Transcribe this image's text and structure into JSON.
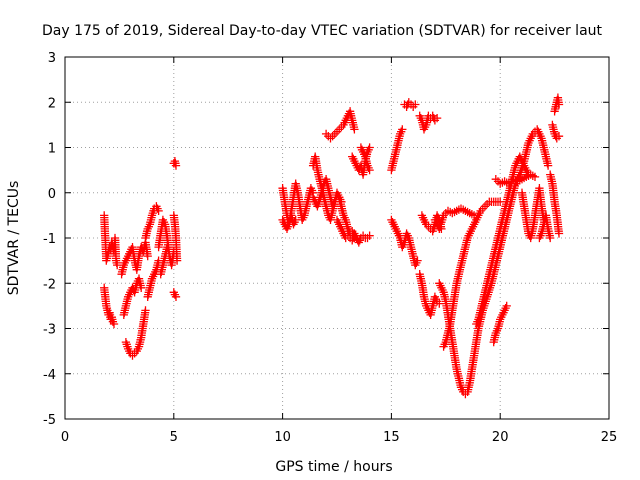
{
  "chart_data": {
    "type": "scatter",
    "title": "Day 175 of 2019, Sidereal Day-to-day VTEC variation (SDTVAR) for receiver laut",
    "xlabel": "GPS time / hours",
    "ylabel": "SDTVAR / TECUs",
    "xlim": [
      0,
      25
    ],
    "ylim": [
      -5,
      3
    ],
    "x_ticks": [
      0,
      5,
      10,
      15,
      20,
      25
    ],
    "y_ticks": [
      -5,
      -4,
      -3,
      -2,
      -1,
      0,
      1,
      2,
      3
    ],
    "x_tick_labels": [
      "0",
      "5",
      "10",
      "15",
      "20",
      "25"
    ],
    "y_tick_labels": [
      "-5",
      "-4",
      "-3",
      "-2",
      "-1",
      "0",
      "1",
      "2",
      "3"
    ],
    "grid": true,
    "marker": "+",
    "color": "#ff0000",
    "series": [
      {
        "x": [
          1.8,
          1.85,
          1.9,
          1.95,
          2.0,
          2.05,
          2.1,
          2.15,
          2.2,
          2.25,
          2.3,
          2.35,
          2.4
        ],
        "y": [
          -0.5,
          -1.0,
          -1.5,
          -1.4,
          -1.3,
          -1.2,
          -1.25,
          -1.1,
          -1.2,
          -1.3,
          -1.0,
          -1.5,
          -1.6
        ]
      },
      {
        "x": [
          1.8,
          1.85,
          1.9,
          1.95,
          2.0,
          2.05,
          2.1,
          2.15,
          2.2,
          2.25
        ],
        "y": [
          -2.1,
          -2.3,
          -2.5,
          -2.6,
          -2.7,
          -2.65,
          -2.8,
          -2.75,
          -2.85,
          -2.9
        ]
      },
      {
        "x": [
          2.6,
          2.7,
          2.8,
          2.9,
          3.0,
          3.1,
          3.2,
          3.3,
          3.4,
          3.5,
          3.6,
          3.7,
          3.8
        ],
        "y": [
          -1.8,
          -1.6,
          -1.5,
          -1.4,
          -1.3,
          -1.2,
          -1.5,
          -1.7,
          -1.4,
          -1.2,
          -1.3,
          -1.1,
          -1.4
        ]
      },
      {
        "x": [
          2.7,
          2.8,
          2.9,
          3.0,
          3.1,
          3.2,
          3.3,
          3.4,
          3.5
        ],
        "y": [
          -2.7,
          -2.5,
          -2.3,
          -2.2,
          -2.1,
          -2.2,
          -2.0,
          -1.9,
          -2.1
        ]
      },
      {
        "x": [
          2.8,
          2.9,
          3.0,
          3.1,
          3.2,
          3.3,
          3.4,
          3.5,
          3.6,
          3.7
        ],
        "y": [
          -3.3,
          -3.45,
          -3.55,
          -3.6,
          -3.55,
          -3.5,
          -3.4,
          -3.2,
          -2.9,
          -2.6
        ]
      },
      {
        "x": [
          3.7,
          3.8,
          3.9,
          4.0,
          4.1,
          4.2,
          4.3
        ],
        "y": [
          -1.0,
          -0.8,
          -0.7,
          -0.5,
          -0.35,
          -0.3,
          -0.4
        ]
      },
      {
        "x": [
          3.8,
          3.9,
          4.0,
          4.1,
          4.2,
          4.3
        ],
        "y": [
          -2.3,
          -2.1,
          -1.9,
          -1.8,
          -1.7,
          -1.5
        ]
      },
      {
        "x": [
          4.3,
          4.4,
          4.5,
          4.6,
          4.7,
          4.8,
          4.9,
          5.0
        ],
        "y": [
          -1.2,
          -0.9,
          -0.6,
          -0.7,
          -1.0,
          -1.4,
          -1.6,
          -1.3
        ]
      },
      {
        "x": [
          4.4,
          4.5,
          4.6,
          4.7
        ],
        "y": [
          -1.8,
          -1.6,
          -1.4,
          -1.2
        ]
      },
      {
        "x": [
          5.0,
          5.05,
          5.1,
          5.15
        ],
        "y": [
          -0.5,
          -0.7,
          -1.0,
          -1.5
        ]
      },
      {
        "x": [
          5.0,
          5.05,
          5.1
        ],
        "y": [
          -2.2,
          -2.25,
          -2.3
        ]
      },
      {
        "x": [
          5.0,
          5.05,
          5.1
        ],
        "y": [
          0.65,
          0.7,
          0.6
        ]
      },
      {
        "x": [
          10.0,
          10.1,
          10.2,
          10.3,
          10.4,
          10.5,
          10.6,
          10.7,
          10.8,
          10.9,
          11.0,
          11.1,
          11.2,
          11.3,
          11.4
        ],
        "y": [
          0.1,
          -0.2,
          -0.5,
          -0.7,
          -0.4,
          -0.1,
          0.2,
          0.0,
          -0.3,
          -0.6,
          -0.5,
          -0.3,
          -0.1,
          0.1,
          0.0
        ]
      },
      {
        "x": [
          10.0,
          10.1,
          10.2,
          10.3,
          10.4,
          10.5,
          10.6
        ],
        "y": [
          -0.6,
          -0.7,
          -0.8,
          -0.65,
          -0.5,
          -0.7,
          -0.6
        ]
      },
      {
        "x": [
          11.4,
          11.5,
          11.6,
          11.7,
          11.8,
          11.9,
          12.0,
          12.1,
          12.2,
          12.3,
          12.4
        ],
        "y": [
          0.6,
          0.8,
          0.5,
          0.3,
          0.1,
          -0.1,
          -0.3,
          -0.5,
          -0.6,
          -0.4,
          -0.2
        ]
      },
      {
        "x": [
          11.4,
          11.5,
          11.6,
          11.7,
          11.8,
          11.9,
          12.0,
          12.1,
          12.2,
          12.3,
          12.4,
          12.5,
          12.6,
          12.7
        ],
        "y": [
          -0.1,
          -0.2,
          -0.3,
          -0.15,
          0.0,
          0.2,
          0.3,
          0.1,
          -0.1,
          -0.3,
          -0.2,
          0.0,
          -0.1,
          -0.2
        ]
      },
      {
        "x": [
          12.0,
          12.2,
          12.4,
          12.6,
          12.8,
          13.0,
          13.1,
          13.2,
          13.3
        ],
        "y": [
          1.3,
          1.2,
          1.3,
          1.4,
          1.5,
          1.7,
          1.8,
          1.6,
          1.4
        ]
      },
      {
        "x": [
          12.5,
          12.6,
          12.7,
          12.8,
          12.9,
          13.0,
          13.1,
          13.2,
          13.3,
          13.4,
          13.5,
          13.6,
          13.7,
          13.8,
          13.9,
          14.0
        ],
        "y": [
          -0.6,
          -0.7,
          -0.8,
          -0.9,
          -1.0,
          -0.95,
          -1.0,
          -1.05,
          -0.9,
          -1.0,
          -1.1,
          -1.0,
          -0.95,
          -1.0,
          -1.0,
          -0.95
        ]
      },
      {
        "x": [
          12.6,
          12.7,
          12.8,
          12.9,
          13.0,
          13.1,
          13.2,
          13.3
        ],
        "y": [
          -0.1,
          -0.3,
          -0.5,
          -0.6,
          -0.8,
          -0.9,
          -0.85,
          -1.0
        ]
      },
      {
        "x": [
          13.2,
          13.3,
          13.4,
          13.5,
          13.6,
          13.7,
          13.8,
          13.9,
          14.0
        ],
        "y": [
          0.8,
          0.7,
          0.6,
          0.5,
          0.6,
          0.4,
          0.7,
          0.9,
          1.0
        ]
      },
      {
        "x": [
          13.6,
          13.7,
          13.8,
          13.9,
          14.0
        ],
        "y": [
          1.0,
          0.9,
          0.8,
          0.6,
          0.5
        ]
      },
      {
        "x": [
          15.0,
          15.1,
          15.2,
          15.3,
          15.4,
          15.5
        ],
        "y": [
          0.5,
          0.7,
          0.9,
          1.1,
          1.3,
          1.4
        ]
      },
      {
        "x": [
          15.6,
          15.7,
          15.8,
          15.9,
          16.0,
          16.1
        ],
        "y": [
          1.95,
          1.9,
          2.0,
          1.95,
          1.9,
          1.95
        ]
      },
      {
        "x": [
          16.3,
          16.4,
          16.5,
          16.6,
          16.7,
          16.8,
          16.9,
          17.0,
          17.1
        ],
        "y": [
          1.7,
          1.6,
          1.4,
          1.5,
          1.7,
          1.65,
          1.7,
          1.6,
          1.65
        ]
      },
      {
        "x": [
          15.0,
          15.1,
          15.2,
          15.3,
          15.4,
          15.5,
          15.6,
          15.7,
          15.8,
          15.9,
          16.0,
          16.1,
          16.2
        ],
        "y": [
          -0.6,
          -0.7,
          -0.8,
          -0.9,
          -1.0,
          -1.2,
          -1.1,
          -0.9,
          -1.0,
          -1.2,
          -1.4,
          -1.6,
          -1.5
        ]
      },
      {
        "x": [
          16.3,
          16.4,
          16.5,
          16.6,
          16.7,
          16.8,
          16.9,
          17.0,
          17.1,
          17.2
        ],
        "y": [
          -1.8,
          -2.0,
          -2.3,
          -2.5,
          -2.6,
          -2.7,
          -2.5,
          -2.3,
          -2.4,
          -2.45
        ]
      },
      {
        "x": [
          16.4,
          16.5,
          16.6,
          16.7,
          16.8,
          16.9,
          17.0,
          17.1,
          17.2,
          17.3
        ],
        "y": [
          -0.5,
          -0.6,
          -0.7,
          -0.75,
          -0.8,
          -0.85,
          -0.7,
          -0.5,
          -0.6,
          -0.8
        ]
      },
      {
        "x": [
          17.0,
          17.2,
          17.4,
          17.6,
          17.8,
          18.0,
          18.2,
          18.4,
          18.6,
          18.8
        ],
        "y": [
          -0.6,
          -0.8,
          -0.5,
          -0.4,
          -0.45,
          -0.4,
          -0.35,
          -0.4,
          -0.45,
          -0.5
        ]
      },
      {
        "x": [
          17.2,
          17.3,
          17.4,
          17.5,
          17.6,
          17.7,
          17.8,
          17.9,
          18.0,
          18.1,
          18.2,
          18.3,
          18.4,
          18.5,
          18.6,
          18.7,
          18.8,
          18.9,
          19.0,
          19.1,
          19.2,
          19.3,
          19.4,
          19.5,
          19.6,
          19.7,
          19.8,
          19.9,
          20.0,
          20.1,
          20.2,
          20.3,
          20.4,
          20.5,
          20.6,
          20.7,
          20.8,
          20.9,
          21.0,
          21.1,
          21.2,
          21.3,
          21.4,
          21.5,
          21.6,
          21.7,
          21.8,
          21.9,
          22.0,
          22.1,
          22.2
        ],
        "y": [
          -2.0,
          -2.1,
          -2.2,
          -2.4,
          -2.7,
          -3.0,
          -3.3,
          -3.6,
          -3.9,
          -4.1,
          -4.3,
          -4.4,
          -4.45,
          -4.4,
          -4.2,
          -3.9,
          -3.6,
          -3.3,
          -3.0,
          -2.8,
          -2.6,
          -2.45,
          -2.3,
          -2.15,
          -2.0,
          -1.8,
          -1.6,
          -1.4,
          -1.2,
          -1.0,
          -0.8,
          -0.6,
          -0.4,
          -0.2,
          0.0,
          0.2,
          0.3,
          0.4,
          0.55,
          0.7,
          0.9,
          1.1,
          1.2,
          1.3,
          1.35,
          1.4,
          1.3,
          1.2,
          1.0,
          0.8,
          0.6
        ]
      },
      {
        "x": [
          17.4,
          17.5,
          17.6,
          17.7,
          17.8,
          17.9,
          18.0,
          18.1,
          18.2,
          18.3,
          18.4,
          18.5,
          18.6,
          18.7,
          18.8,
          18.9,
          19.0,
          19.1,
          19.2,
          19.3,
          19.4,
          19.5,
          19.6,
          19.7,
          19.8,
          19.9,
          20.0
        ],
        "y": [
          -3.4,
          -3.3,
          -3.1,
          -2.9,
          -2.6,
          -2.3,
          -2.0,
          -1.8,
          -1.6,
          -1.4,
          -1.2,
          -1.0,
          -0.9,
          -0.8,
          -0.7,
          -0.6,
          -0.5,
          -0.4,
          -0.35,
          -0.3,
          -0.25,
          -0.2,
          -0.2,
          -0.2,
          -0.2,
          -0.2,
          -0.2
        ]
      },
      {
        "x": [
          18.9,
          19.0,
          19.1,
          19.2,
          19.3,
          19.4,
          19.5,
          19.6,
          19.7,
          19.8,
          19.9,
          20.0,
          20.1,
          20.2,
          20.3,
          20.4,
          20.5,
          20.6,
          20.7,
          20.8,
          20.9,
          21.0,
          21.1,
          21.2,
          21.3
        ],
        "y": [
          -2.9,
          -2.8,
          -2.6,
          -2.4,
          -2.2,
          -2.0,
          -1.8,
          -1.6,
          -1.4,
          -1.2,
          -1.0,
          -0.8,
          -0.6,
          -0.4,
          -0.2,
          0.0,
          0.2,
          0.4,
          0.6,
          0.7,
          0.8,
          0.7,
          0.6,
          0.5,
          0.4
        ]
      },
      {
        "x": [
          19.7,
          19.8,
          19.9,
          20.0,
          20.1,
          20.2,
          20.3
        ],
        "y": [
          -3.3,
          -3.1,
          -3.0,
          -2.8,
          -2.7,
          -2.6,
          -2.5
        ]
      },
      {
        "x": [
          19.8,
          20.0,
          20.2,
          20.4,
          20.6,
          20.8,
          21.0,
          21.2,
          21.4,
          21.6
        ],
        "y": [
          0.3,
          0.2,
          0.25,
          0.2,
          0.3,
          0.25,
          0.3,
          0.35,
          0.4,
          0.35
        ]
      },
      {
        "x": [
          21.0,
          21.1,
          21.2,
          21.3,
          21.4,
          21.5,
          21.6,
          21.7,
          21.8,
          21.9,
          22.0
        ],
        "y": [
          0.0,
          -0.3,
          -0.6,
          -0.9,
          -1.0,
          -0.8,
          -0.5,
          -0.2,
          0.1,
          -0.3,
          -0.6
        ]
      },
      {
        "x": [
          21.8,
          21.9,
          22.0,
          22.1,
          22.2,
          22.3
        ],
        "y": [
          -1.0,
          -0.9,
          -0.7,
          -0.5,
          -0.8,
          -1.0
        ]
      },
      {
        "x": [
          22.3,
          22.4,
          22.5,
          22.6,
          22.7
        ],
        "y": [
          0.4,
          0.2,
          -0.2,
          -0.5,
          -0.9
        ]
      },
      {
        "x": [
          22.4,
          22.5,
          22.6,
          22.7
        ],
        "y": [
          1.5,
          1.3,
          1.2,
          1.25
        ]
      },
      {
        "x": [
          22.5,
          22.55,
          22.6,
          22.65,
          22.7
        ],
        "y": [
          1.8,
          1.9,
          2.0,
          2.1,
          1.95
        ]
      }
    ]
  }
}
